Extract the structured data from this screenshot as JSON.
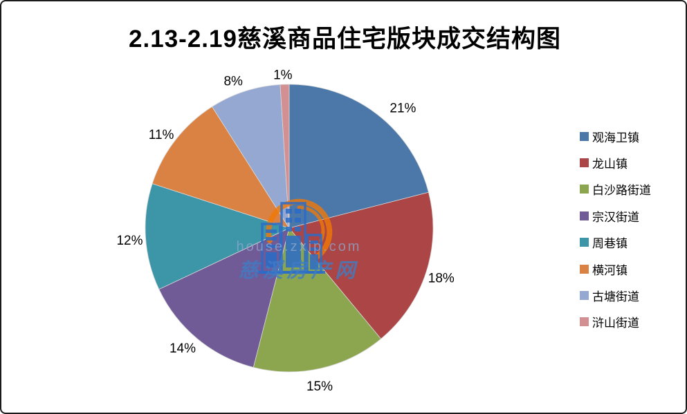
{
  "title": "2.13-2.19慈溪商品住宅版块成交结构图",
  "chart_data": {
    "type": "pie",
    "title": "2.13-2.19慈溪商品住宅版块成交结构图",
    "start_angle_deg": 0,
    "direction": "clockwise",
    "legend_position": "right",
    "categories": [
      "观海卫镇",
      "龙山镇",
      "白沙路街道",
      "宗汉街道",
      "周巷镇",
      "横河镇",
      "古塘街道",
      "浒山街道"
    ],
    "series": [
      {
        "name": "观海卫镇",
        "value": 21,
        "color": "#4B78A8"
      },
      {
        "name": "龙山镇",
        "value": 18,
        "color": "#AC4546"
      },
      {
        "name": "白沙路街道",
        "value": 15,
        "color": "#8CA64F"
      },
      {
        "name": "宗汉街道",
        "value": 14,
        "color": "#705B97"
      },
      {
        "name": "周巷镇",
        "value": 12,
        "color": "#3D95A8"
      },
      {
        "name": "横河镇",
        "value": 11,
        "color": "#DA8244"
      },
      {
        "name": "古塘街道",
        "value": 8,
        "color": "#94A8D1"
      },
      {
        "name": "浒山街道",
        "value": 1,
        "color": "#D39093"
      }
    ],
    "labels": [
      "21%",
      "18%",
      "15%",
      "14%",
      "12%",
      "11%",
      "8%",
      "1%"
    ],
    "units": "percent"
  },
  "watermark": {
    "url_text": "house.zxip.com",
    "site_name": "慈溪房产网",
    "logo_blue": "#2a6cc8",
    "logo_orange": "#f07806"
  }
}
